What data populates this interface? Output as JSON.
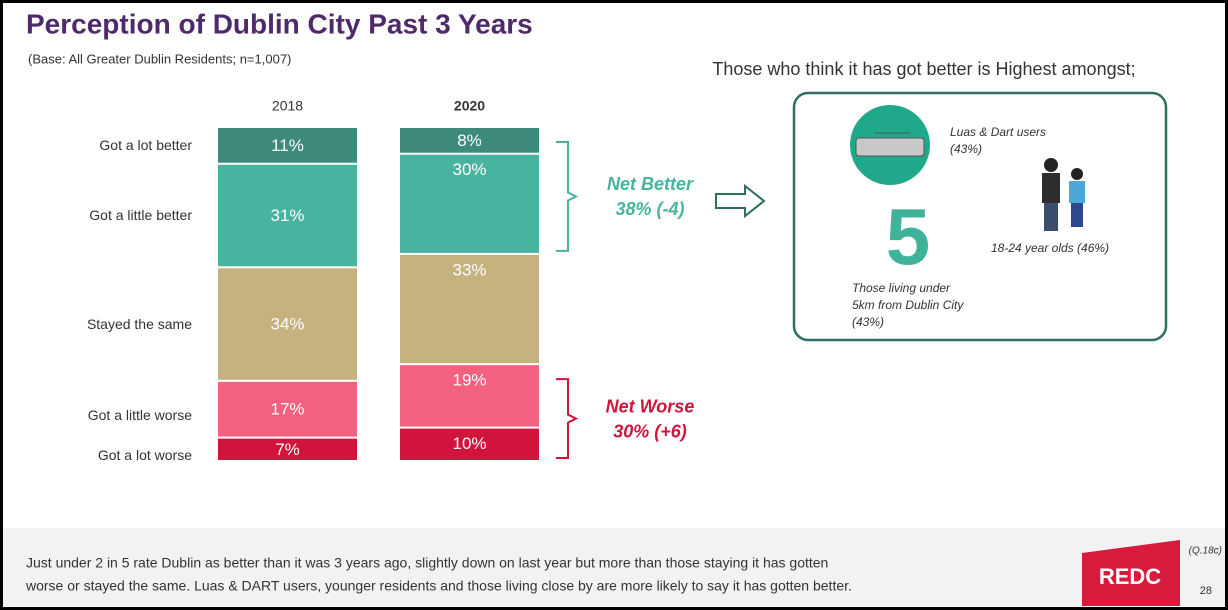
{
  "chart_data": {
    "type": "bar",
    "stacked": true,
    "title": "Perception of Dublin City Past 3 Years",
    "subtitle": "(Base: All Greater Dublin Residents; n=1,007)",
    "categories": [
      "2018",
      "2020"
    ],
    "series": [
      {
        "name": "Got a lot better",
        "color": "#3e8b7b",
        "values": [
          11,
          8
        ],
        "value_labels": [
          "11%",
          "8%"
        ]
      },
      {
        "name": "Got a little better",
        "color": "#48b49f",
        "values": [
          31,
          30
        ],
        "value_labels": [
          "31%",
          "30%"
        ]
      },
      {
        "name": "Stayed the same",
        "color": "#c6b27f",
        "values": [
          34,
          33
        ],
        "value_labels": [
          "34%",
          "33%"
        ]
      },
      {
        "name": "Got a little worse",
        "color": "#f2617f",
        "values": [
          17,
          19
        ],
        "value_labels": [
          "17%",
          "19%"
        ]
      },
      {
        "name": "Got a lot worse",
        "color": "#d0143c",
        "values": [
          7,
          10
        ],
        "value_labels": [
          "7%",
          "10%"
        ]
      }
    ],
    "annotations": [
      {
        "title": "Net Better",
        "text": "38% (-4)",
        "color": "#48b49f"
      },
      {
        "title": "Net Worse",
        "text": "30% (+6)",
        "color": "#d0143c"
      }
    ]
  },
  "panel": {
    "heading": "Those who think it has got better is Highest amongst;",
    "items": [
      "Luas & Dart users",
      "(43%)",
      "18-24 year olds (46%)",
      "5",
      "Those living under",
      "5km from Dublin City",
      "(43%)"
    ]
  },
  "footer": {
    "lines": [
      "Just under 2 in 5 rate Dublin as better than it was 3 years ago, slightly down on last year but more than those staying it has gotten",
      "worse or stayed the same. Luas & DART users, younger residents and those living close by are more likely to say it has gotten better."
    ],
    "logo": "REDC",
    "note": "(Q.18c)",
    "page": "28"
  }
}
